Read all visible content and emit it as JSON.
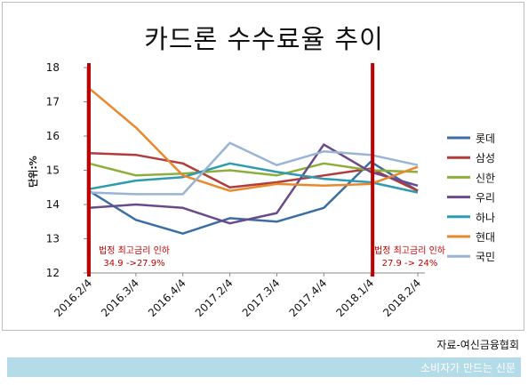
{
  "chart_data": {
    "type": "line",
    "title": "카드론 수수료율 추이",
    "ylabel": "단위:%",
    "ylim": [
      12,
      18
    ],
    "yticks": [
      12,
      13,
      14,
      15,
      16,
      17,
      18
    ],
    "categories": [
      "2016.2/4",
      "2016.3/4",
      "2016.4/4",
      "2017.2/4",
      "2017.3/4",
      "2017.4/4",
      "2018.1/4",
      "2018.2/4"
    ],
    "grid": false,
    "legend": "right",
    "series": [
      {
        "name": "롯데",
        "color": "#3a6ea5",
        "values": [
          14.4,
          13.55,
          13.15,
          13.6,
          13.5,
          13.9,
          15.25,
          14.4
        ]
      },
      {
        "name": "삼성",
        "color": "#b23b3b",
        "values": [
          15.5,
          15.45,
          15.2,
          14.5,
          14.65,
          14.85,
          15.05,
          14.4
        ]
      },
      {
        "name": "신한",
        "color": "#8caf3c",
        "values": [
          15.2,
          14.85,
          14.9,
          15.0,
          14.85,
          15.2,
          15.0,
          14.95
        ]
      },
      {
        "name": "우리",
        "color": "#6b4a8c",
        "values": [
          13.9,
          14.0,
          13.9,
          13.45,
          13.75,
          15.75,
          14.95,
          14.55
        ]
      },
      {
        "name": "하나",
        "color": "#2f9ab0",
        "values": [
          14.45,
          14.7,
          14.8,
          15.2,
          14.95,
          14.75,
          14.65,
          14.35
        ]
      },
      {
        "name": "현대",
        "color": "#e8892e",
        "values": [
          17.4,
          16.25,
          14.85,
          14.4,
          14.6,
          14.55,
          14.6,
          15.1
        ]
      },
      {
        "name": "국민",
        "color": "#99b4d4",
        "values": [
          14.35,
          14.3,
          14.3,
          15.8,
          15.15,
          15.55,
          15.45,
          15.15
        ]
      }
    ],
    "vlines": [
      {
        "at_category": "2016.2/4",
        "color": "#c00000"
      },
      {
        "at_category": "2018.1/4",
        "color": "#c00000"
      }
    ],
    "annotations": [
      {
        "line1": "법정 최고금리 인하",
        "line2": "34.9 ->27.9%",
        "color": "#c00000"
      },
      {
        "line1": "법정 최고금리 인하",
        "line2": "27.9 -> 24%",
        "color": "#c00000"
      }
    ]
  },
  "source": "자료-여신금융협회",
  "footer": "소비자가 만드는 신문"
}
